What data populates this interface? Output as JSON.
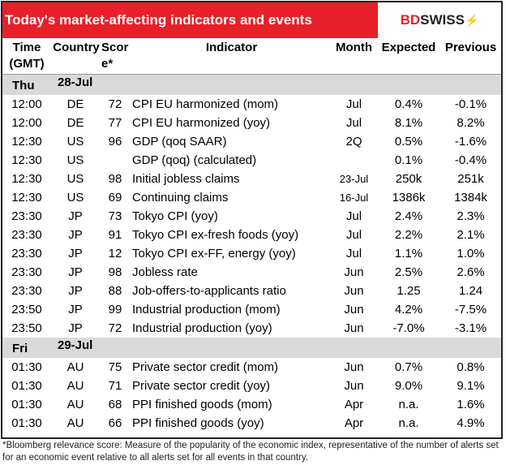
{
  "title": "Today's market-affecting indicators and events",
  "logo": {
    "bd": "BD",
    "swiss": "SWISS"
  },
  "headers": {
    "time": "Time (GMT)",
    "country": "Country",
    "score": "Score*",
    "indicator": "Indicator",
    "month": "Month",
    "expected": "Expected",
    "previous": "Previous"
  },
  "days": [
    {
      "day": "Thu",
      "date": "28-Jul",
      "rows": [
        [
          "12:00",
          "DE",
          "72",
          "CPI EU harmonized (mom)",
          "Jul",
          "0.4%",
          "-0.1%"
        ],
        [
          "12:00",
          "DE",
          "77",
          "CPI EU harmonized (yoy)",
          "Jul",
          "8.1%",
          "8.2%"
        ],
        [
          "12:30",
          "US",
          "96",
          "GDP (qoq SAAR)",
          "2Q",
          "0.5%",
          "-1.6%"
        ],
        [
          "12:30",
          "US",
          "",
          "GDP (qoq) (calculated)",
          "",
          "0.1%",
          "-0.4%"
        ],
        [
          "12:30",
          "US",
          "98",
          "Initial jobless claims",
          "23-Jul",
          "250k",
          "251k"
        ],
        [
          "12:30",
          "US",
          "69",
          "Continuing claims",
          "16-Jul",
          "1386k",
          "1384k"
        ],
        [
          "23:30",
          "JP",
          "73",
          "Tokyo CPI (yoy)",
          "Jul",
          "2.4%",
          "2.3%"
        ],
        [
          "23:30",
          "JP",
          "91",
          "Tokyo CPI ex-fresh foods (yoy)",
          "Jul",
          "2.2%",
          "2.1%"
        ],
        [
          "23:30",
          "JP",
          "12",
          "Tokyo CPI ex-FF, energy (yoy)",
          "Jul",
          "1.1%",
          "1.0%"
        ],
        [
          "23:30",
          "JP",
          "98",
          "Jobless rate",
          "Jun",
          "2.5%",
          "2.6%"
        ],
        [
          "23:30",
          "JP",
          "88",
          "Job-offers-to-applicants ratio",
          "Jun",
          "1.25",
          "1.24"
        ],
        [
          "23:50",
          "JP",
          "99",
          "Industrial production (mom)",
          "Jun",
          "4.2%",
          "-7.5%"
        ],
        [
          "23:50",
          "JP",
          "72",
          "Industrial production (yoy)",
          "Jun",
          "-7.0%",
          "-3.1%"
        ]
      ]
    },
    {
      "day": "Fri",
      "date": "29-Jul",
      "rows": [
        [
          "01:30",
          "AU",
          "75",
          "Private sector credit (mom)",
          "Jun",
          "0.7%",
          "0.8%"
        ],
        [
          "01:30",
          "AU",
          "71",
          "Private sector credit (yoy)",
          "Jun",
          "9.0%",
          "9.1%"
        ],
        [
          "01:30",
          "AU",
          "68",
          "PPI finished goods (mom)",
          "Apr",
          "n.a.",
          "1.6%"
        ],
        [
          "01:30",
          "AU",
          "66",
          "PPI finished goods (yoy)",
          "Apr",
          "n.a.",
          "4.9%"
        ]
      ]
    }
  ],
  "footnote": "*Bloomberg relevance score:  Measure of the popularity of the economic index, representative of the number of alerts set for an economic event relative to all alerts set for all events in that country."
}
